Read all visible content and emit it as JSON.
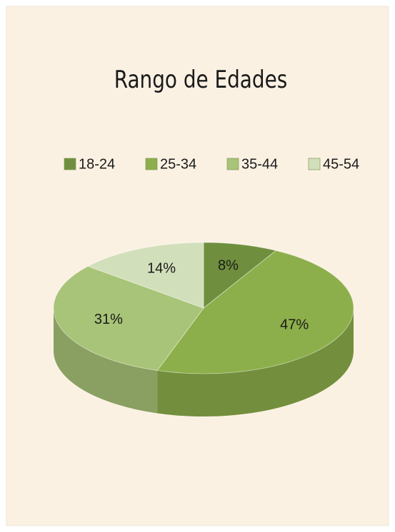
{
  "chart_data": {
    "type": "pie",
    "title": "Rango de Edades",
    "categories": [
      "18-24",
      "25-34",
      "35-44",
      "45-54"
    ],
    "values": [
      8,
      47,
      31,
      14
    ],
    "value_labels": [
      "8%",
      "47%",
      "31%",
      "14%"
    ],
    "colors": [
      "#6f8f3e",
      "#8daf4b",
      "#a8c478",
      "#d2dfbb"
    ],
    "legend": "top"
  }
}
